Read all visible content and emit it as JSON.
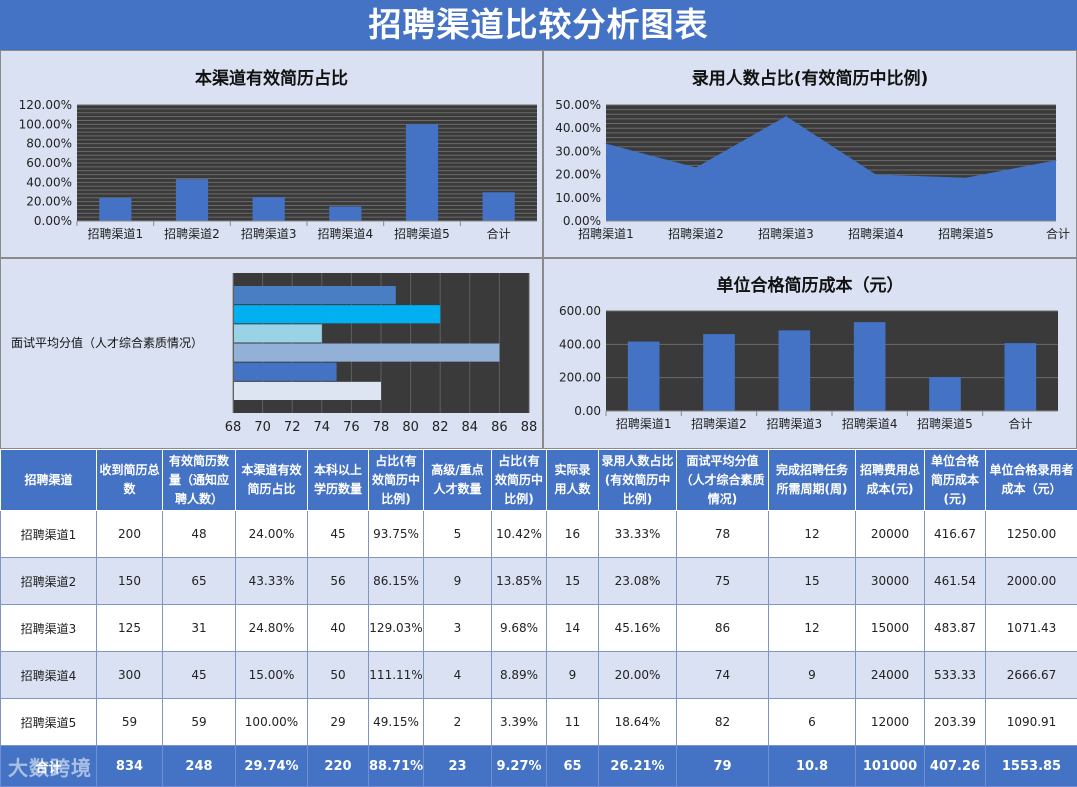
{
  "page_title": "招聘渠道比较分析图表",
  "chart_data": [
    {
      "type": "bar",
      "title": "本渠道有效简历占比",
      "categories": [
        "招聘渠道1",
        "招聘渠道2",
        "招聘渠道3",
        "招聘渠道4",
        "招聘渠道5",
        "合计"
      ],
      "values": [
        24.0,
        43.33,
        24.8,
        15.0,
        100.0,
        29.74
      ],
      "ylim": [
        0,
        120
      ],
      "yticks": [
        "0.00%",
        "20.00%",
        "40.00%",
        "60.00%",
        "80.00%",
        "100.00%",
        "120.00%"
      ],
      "grid": true
    },
    {
      "type": "area",
      "title": "录用人数占比(有效简历中比例)",
      "categories": [
        "招聘渠道1",
        "招聘渠道2",
        "招聘渠道3",
        "招聘渠道4",
        "招聘渠道5",
        "合计"
      ],
      "values": [
        33.33,
        23.08,
        45.16,
        20.0,
        18.64,
        26.21
      ],
      "ylim": [
        0,
        50
      ],
      "yticks": [
        "0.00%",
        "10.00%",
        "20.00%",
        "30.00%",
        "40.00%",
        "50.00%"
      ],
      "grid": true
    },
    {
      "type": "bar",
      "orientation": "horizontal",
      "title": "",
      "ylabel": "面试平均分值（人才综合素质情况）",
      "values": [
        79,
        82,
        74,
        86,
        75,
        78
      ],
      "colors": [
        "#4a7ec2",
        "#00b0f0",
        "#9bd3e6",
        "#93b0d6",
        "#4472c4",
        "#dde4f2"
      ],
      "xlim": [
        68,
        88
      ],
      "xticks": [
        "68",
        "70",
        "72",
        "74",
        "76",
        "78",
        "80",
        "82",
        "84",
        "86",
        "88"
      ],
      "grid": true
    },
    {
      "type": "bar",
      "title": "单位合格简历成本（元）",
      "categories": [
        "招聘渠道1",
        "招聘渠道2",
        "招聘渠道3",
        "招聘渠道4",
        "招聘渠道5",
        "合计"
      ],
      "values": [
        416.67,
        461.54,
        483.87,
        533.33,
        203.39,
        407.26
      ],
      "ylim": [
        0,
        600
      ],
      "yticks": [
        "0.00",
        "200.00",
        "400.00",
        "600.00"
      ],
      "grid": true
    }
  ],
  "table": {
    "headers": [
      "招聘渠道",
      "收到简历总数",
      "有效简历数量（通知应聘人数）",
      "本渠道有效简历占比",
      "本科以上学历数量",
      "占比(有效简历中比例)",
      "高级/重点人才数量",
      "占比(有效简历中比例)",
      "实际录用人数",
      "录用人数占比(有效简历中比例)",
      "面试平均分值（人才综合素质情况)",
      "完成招聘任务所需周期(周)",
      "招聘费用总成本(元)",
      "单位合格简历成本(元)",
      "单位合格录用者成本（元）"
    ],
    "rows": [
      [
        "招聘渠道1",
        "200",
        "48",
        "24.00%",
        "45",
        "93.75%",
        "5",
        "10.42%",
        "16",
        "33.33%",
        "78",
        "12",
        "20000",
        "416.67",
        "1250.00"
      ],
      [
        "招聘渠道2",
        "150",
        "65",
        "43.33%",
        "56",
        "86.15%",
        "9",
        "13.85%",
        "15",
        "23.08%",
        "75",
        "15",
        "30000",
        "461.54",
        "2000.00"
      ],
      [
        "招聘渠道3",
        "125",
        "31",
        "24.80%",
        "40",
        "129.03%",
        "3",
        "9.68%",
        "14",
        "45.16%",
        "86",
        "12",
        "15000",
        "483.87",
        "1071.43"
      ],
      [
        "招聘渠道4",
        "300",
        "45",
        "15.00%",
        "50",
        "111.11%",
        "4",
        "8.89%",
        "9",
        "20.00%",
        "74",
        "9",
        "24000",
        "533.33",
        "2666.67"
      ],
      [
        "招聘渠道5",
        "59",
        "59",
        "100.00%",
        "29",
        "49.15%",
        "2",
        "3.39%",
        "11",
        "18.64%",
        "82",
        "6",
        "12000",
        "203.39",
        "1090.91"
      ]
    ],
    "total": [
      "合计",
      "834",
      "248",
      "29.74%",
      "220",
      "88.71%",
      "23",
      "9.27%",
      "65",
      "26.21%",
      "79",
      "10.8",
      "101000",
      "407.26",
      "1553.85"
    ]
  },
  "watermark": "大数跨境"
}
